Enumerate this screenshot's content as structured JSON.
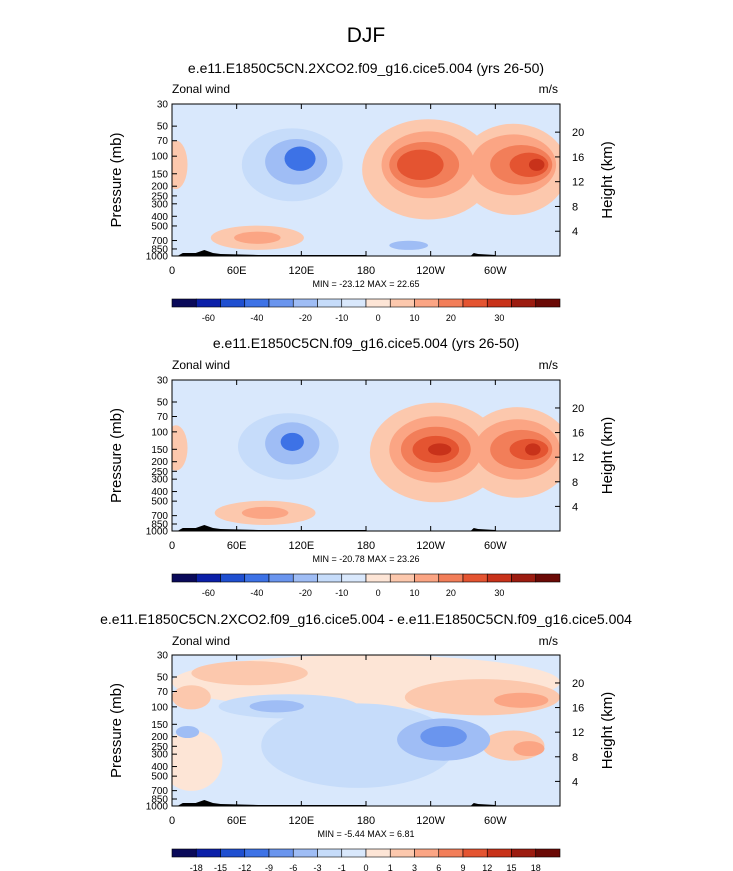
{
  "page_title": "DJF",
  "chart_data": [
    {
      "type": "heatmap",
      "title": "e.e11.E1850C5CN.2XCO2.f09_g16.cice5.004 (yrs 26-50)",
      "left_label": "Zonal wind",
      "units": "m/s",
      "ylabel": "Pressure (mb)",
      "ylabel_right": "Height (km)",
      "x_ticks": [
        "0",
        "60E",
        "120E",
        "180",
        "120W",
        "60W"
      ],
      "y_ticks": [
        "30",
        "50",
        "70",
        "100",
        "150",
        "200",
        "250",
        "300",
        "400",
        "500",
        "700",
        "850",
        "1000"
      ],
      "height_ticks": [
        "20",
        "16",
        "12",
        "8",
        "4"
      ],
      "stats": "MIN = -23.12   MAX =  22.65",
      "colorbar_labels": [
        "-60",
        "-40",
        "-20",
        "-10",
        "0",
        "10",
        "20",
        "30"
      ],
      "xlim": [
        0,
        360
      ],
      "ylim": [
        1000,
        30
      ]
    },
    {
      "type": "heatmap",
      "title": "e.e11.E1850C5CN.f09_g16.cice5.004 (yrs 26-50)",
      "left_label": "Zonal wind",
      "units": "m/s",
      "ylabel": "Pressure (mb)",
      "ylabel_right": "Height (km)",
      "x_ticks": [
        "0",
        "60E",
        "120E",
        "180",
        "120W",
        "60W"
      ],
      "y_ticks": [
        "30",
        "50",
        "70",
        "100",
        "150",
        "200",
        "250",
        "300",
        "400",
        "500",
        "700",
        "850",
        "1000"
      ],
      "height_ticks": [
        "20",
        "16",
        "12",
        "8",
        "4"
      ],
      "stats": "MIN = -20.78   MAX =  23.26",
      "colorbar_labels": [
        "-60",
        "-40",
        "-20",
        "-10",
        "0",
        "10",
        "20",
        "30"
      ],
      "xlim": [
        0,
        360
      ],
      "ylim": [
        1000,
        30
      ]
    },
    {
      "type": "heatmap",
      "title": "e.e11.E1850C5CN.2XCO2.f09_g16.cice5.004 - e.e11.E1850C5CN.f09_g16.cice5.004",
      "left_label": "Zonal wind",
      "units": "m/s",
      "ylabel": "Pressure (mb)",
      "ylabel_right": "Height (km)",
      "x_ticks": [
        "0",
        "60E",
        "120E",
        "180",
        "120W",
        "60W"
      ],
      "y_ticks": [
        "30",
        "50",
        "70",
        "100",
        "150",
        "200",
        "250",
        "300",
        "400",
        "500",
        "700",
        "850",
        "1000"
      ],
      "height_ticks": [
        "20",
        "16",
        "12",
        "8",
        "4"
      ],
      "stats": "MIN =  -5.44   MAX =   6.81",
      "colorbar_labels": [
        "-18",
        "-15",
        "-12",
        "-9",
        "-6",
        "-3",
        "-1",
        "0",
        "1",
        "3",
        "6",
        "9",
        "12",
        "15",
        "18"
      ],
      "xlim": [
        0,
        360
      ],
      "ylim": [
        1000,
        30
      ]
    }
  ],
  "colors": {
    "ramp": [
      "#0a0a5a",
      "#0b1fa8",
      "#1f4fd0",
      "#3d72e6",
      "#6a95ee",
      "#9fbdf5",
      "#c6dcfa",
      "#d9e8fc",
      "#fde5d6",
      "#fcc8ad",
      "#fba584",
      "#f27e59",
      "#e45431",
      "#c8321a",
      "#9c1c10",
      "#6b0a06"
    ],
    "bg_light_blue": "#d9e8fc",
    "terrain": "#000000"
  }
}
